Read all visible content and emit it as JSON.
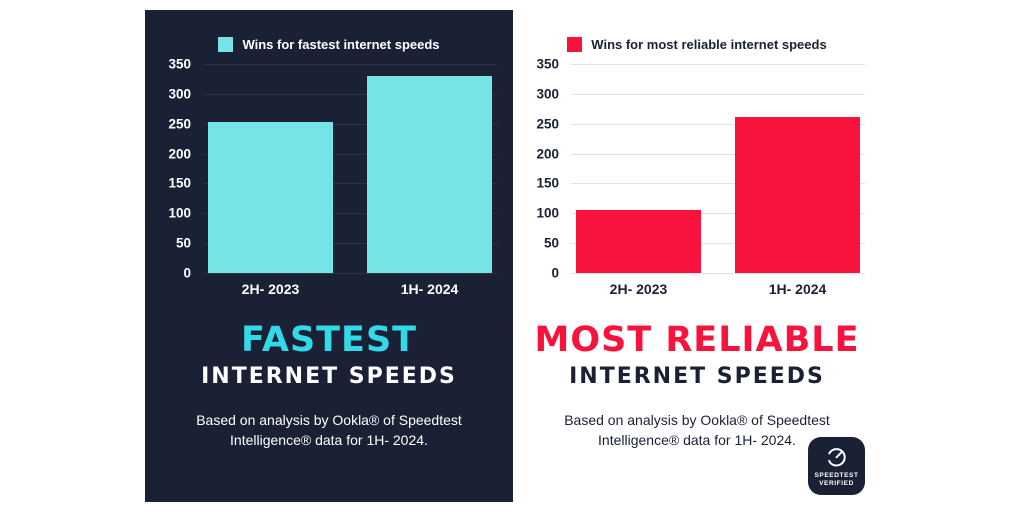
{
  "colors": {
    "navy": "#1a2134",
    "cyan_bar": "#74e4e6",
    "cyan_accent": "#31d9e9",
    "red": "#f8133c",
    "grid_dark": "#2b3148",
    "grid_light": "#e2e2e2"
  },
  "panels": [
    {
      "id": "fastest",
      "title_line1": "FASTEST",
      "title_line2": "INTERNET SPEEDS",
      "footnote": "Based on analysis by Ookla® of Speedtest Intelligence® data for 1H- 2024."
    },
    {
      "id": "most-reliable",
      "title_line1": "MOST RELIABLE",
      "title_line2": "INTERNET SPEEDS",
      "footnote": "Based on analysis by Ookla® of Speedtest Intelligence® data for 1H- 2024."
    }
  ],
  "chart_data": [
    {
      "type": "bar",
      "title": "Wins for fastest internet speeds",
      "categories": [
        "2H- 2023",
        "1H- 2024"
      ],
      "values": [
        253,
        330
      ],
      "bar_color": "#74e4e6",
      "xlabel": "",
      "ylabel": "",
      "ylim": [
        0,
        350
      ],
      "yticks": [
        0,
        50,
        100,
        150,
        200,
        250,
        300,
        350
      ],
      "grid": true,
      "legend_position": "top"
    },
    {
      "type": "bar",
      "title": "Wins for most reliable internet speeds",
      "categories": [
        "2H- 2023",
        "1H- 2024"
      ],
      "values": [
        105,
        262
      ],
      "bar_color": "#f8133c",
      "xlabel": "",
      "ylabel": "",
      "ylim": [
        0,
        350
      ],
      "yticks": [
        0,
        50,
        100,
        150,
        200,
        250,
        300,
        350
      ],
      "grid": true,
      "legend_position": "top"
    }
  ],
  "badge": {
    "line1": "SPEEDTEST",
    "line2": "VERIFIED"
  }
}
